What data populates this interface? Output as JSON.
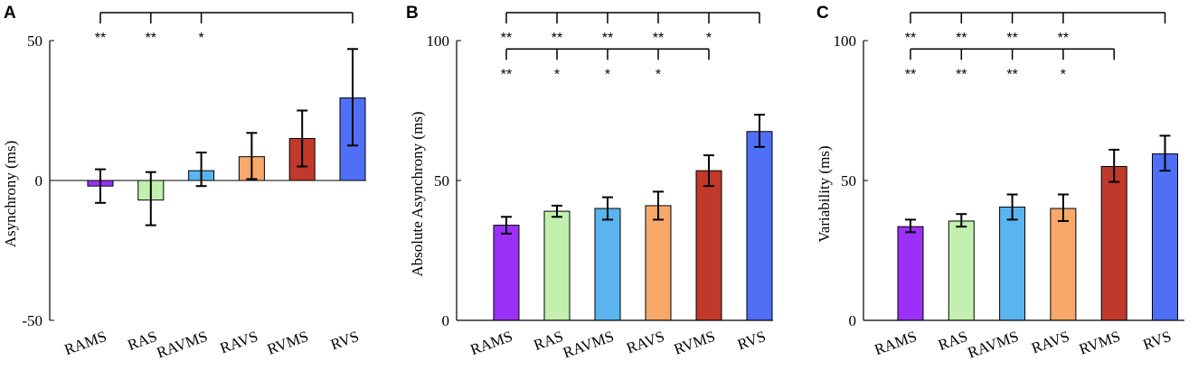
{
  "colors": {
    "RAMS": "#9b30f7",
    "RAS": "#c3f0ae",
    "RAVMS": "#5ab4f0",
    "RAVS": "#f8a86a",
    "RVMS": "#c0392b",
    "RVS": "#4f6ff5"
  },
  "chart_data": [
    {
      "type": "bar",
      "panel": "A",
      "ylabel": "Asynchrony (ms)",
      "ylim": [
        -50,
        50
      ],
      "yticks": [
        "50",
        "0",
        "-50"
      ],
      "ytick_values": [
        50,
        0,
        -50
      ],
      "zero_line": true,
      "categories": [
        "RAMS",
        "RAS",
        "RAVMS",
        "RAVS",
        "RVMS",
        "RVS"
      ],
      "values": [
        -2,
        -7,
        3.5,
        8.5,
        15,
        29.5
      ],
      "err_low": [
        -8,
        -16,
        -2,
        0.5,
        5,
        12.5
      ],
      "err_high": [
        4,
        3,
        10,
        17,
        25,
        47
      ],
      "significance": [
        {
          "y": 60,
          "from": 0,
          "to": 5,
          "marks": [
            {
              "cat": 0,
              "text": "**"
            },
            {
              "cat": 1,
              "text": "**"
            },
            {
              "cat": 2,
              "text": "*"
            }
          ]
        }
      ]
    },
    {
      "type": "bar",
      "panel": "B",
      "ylabel": "Absolute Asynchrony (ms)",
      "ylim": [
        0,
        100
      ],
      "yticks": [
        "100",
        "50",
        "0"
      ],
      "ytick_values": [
        100,
        50,
        0
      ],
      "zero_line": false,
      "categories": [
        "RAMS",
        "RAS",
        "RAVMS",
        "RAVS",
        "RVMS",
        "RVS"
      ],
      "values": [
        34,
        39,
        40,
        41,
        53.5,
        67.5
      ],
      "err_low": [
        31,
        37,
        36,
        36,
        48,
        62
      ],
      "err_high": [
        37,
        41,
        44,
        46,
        59,
        73.5
      ],
      "significance": [
        {
          "y": 110,
          "from": 0,
          "to": 5,
          "marks": [
            {
              "cat": 0,
              "text": "**"
            },
            {
              "cat": 1,
              "text": "**"
            },
            {
              "cat": 2,
              "text": "**"
            },
            {
              "cat": 3,
              "text": "**"
            },
            {
              "cat": 4,
              "text": "*"
            }
          ]
        },
        {
          "y": 97,
          "from": 0,
          "to": 4,
          "marks": [
            {
              "cat": 0,
              "text": "**"
            },
            {
              "cat": 1,
              "text": "*"
            },
            {
              "cat": 2,
              "text": "*"
            },
            {
              "cat": 3,
              "text": "*"
            }
          ]
        }
      ]
    },
    {
      "type": "bar",
      "panel": "C",
      "ylabel": "Variability (ms)",
      "ylim": [
        0,
        100
      ],
      "yticks": [
        "100",
        "50",
        "0"
      ],
      "ytick_values": [
        100,
        50,
        0
      ],
      "zero_line": false,
      "categories": [
        "RAMS",
        "RAS",
        "RAVMS",
        "RAVS",
        "RVMS",
        "RVS"
      ],
      "values": [
        33.5,
        35.5,
        40.5,
        40,
        55,
        59.5
      ],
      "err_low": [
        31.5,
        33.5,
        36,
        35.5,
        49.5,
        53.5
      ],
      "err_high": [
        36,
        38,
        45,
        45,
        61,
        66
      ],
      "significance": [
        {
          "y": 110,
          "from": 0,
          "to": 5,
          "marks": [
            {
              "cat": 0,
              "text": "**"
            },
            {
              "cat": 1,
              "text": "**"
            },
            {
              "cat": 2,
              "text": "**"
            },
            {
              "cat": 3,
              "text": "**"
            }
          ]
        },
        {
          "y": 97,
          "from": 0,
          "to": 4,
          "marks": [
            {
              "cat": 0,
              "text": "**"
            },
            {
              "cat": 1,
              "text": "**"
            },
            {
              "cat": 2,
              "text": "**"
            },
            {
              "cat": 3,
              "text": "*"
            }
          ]
        }
      ]
    }
  ]
}
